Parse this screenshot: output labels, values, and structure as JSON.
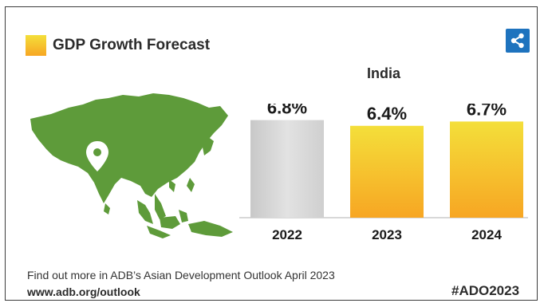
{
  "header": {
    "title": "GDP Growth Forecast",
    "country": "India",
    "share_icon": "share-icon"
  },
  "footer": {
    "text": "Find out more in ADB’s Asian Development Outlook April 2023",
    "link": "www.adb.org/outlook",
    "hashtag": "#ADO2023"
  },
  "map": {
    "icon": "location-pin-icon",
    "fill_color": "#5e9b3a"
  },
  "colors": {
    "grey_bar": "#d6d6d6",
    "forecast_top": "#f4df3a",
    "forecast_bottom": "#f7a623",
    "share": "#1e73be"
  },
  "chart_data": {
    "type": "bar",
    "title": "GDP Growth Forecast",
    "subtitle": "India",
    "categories": [
      "2022",
      "2023",
      "2024"
    ],
    "values": [
      6.8,
      6.4,
      6.7
    ],
    "value_labels": [
      "6.8%",
      "6.4%",
      "6.7%"
    ],
    "ylim": [
      0,
      7.5
    ],
    "grid": false
  }
}
